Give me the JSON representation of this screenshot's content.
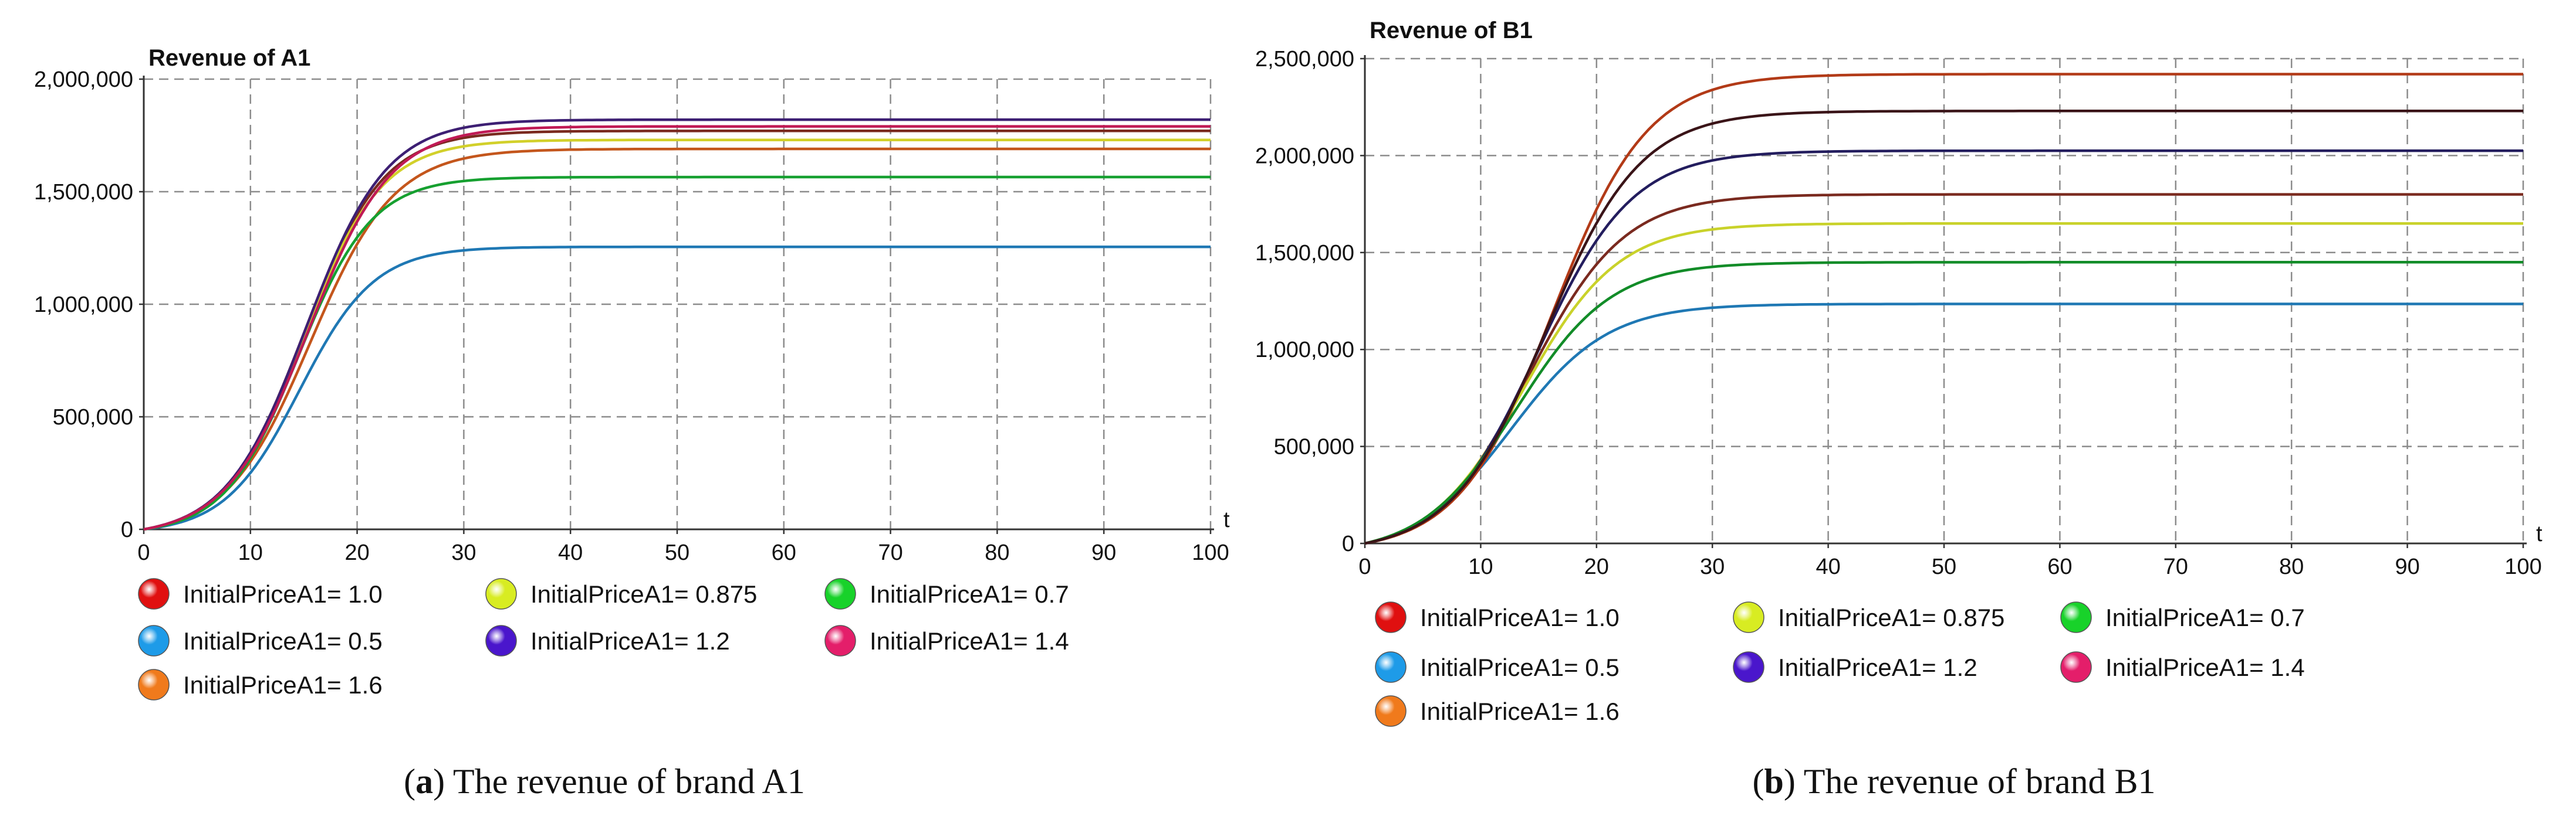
{
  "chart_data": [
    {
      "type": "line",
      "title": "Revenue of A1",
      "xlabel": "t",
      "ylabel": "",
      "xlim": [
        0,
        100
      ],
      "ylim": [
        0,
        2000000
      ],
      "xticks": [
        0,
        10,
        20,
        30,
        40,
        50,
        60,
        70,
        80,
        90,
        100
      ],
      "xtick_labels": [
        "0",
        "10",
        "20",
        "30",
        "40",
        "50",
        "60",
        "70",
        "80",
        "90",
        "100"
      ],
      "yticks": [
        0,
        500000,
        1000000,
        1500000,
        2000000
      ],
      "ytick_labels": [
        "0",
        "500,000",
        "1,000,000",
        "1,500,000",
        "2,000,000"
      ],
      "grid": true,
      "legend_position": "bottom",
      "caption_prefix": "(",
      "caption_letter": "a",
      "caption_text": ") The revenue of brand A1",
      "series": [
        {
          "name": "InitialPriceA1= 1.0",
          "color": "#7a2a1f",
          "legend_color": "#e01010",
          "plateau": 1770000,
          "midpoint": 15.0,
          "rate": 0.27
        },
        {
          "name": "InitialPriceA1= 0.5",
          "color": "#1f78b4",
          "legend_color": "#1e9be8",
          "plateau": 1255000,
          "midpoint": 14.6,
          "rate": 0.285
        },
        {
          "name": "InitialPriceA1= 1.6",
          "color": "#c4561c",
          "legend_color": "#f07a1c",
          "plateau": 1690000,
          "midpoint": 15.6,
          "rate": 0.255
        },
        {
          "name": "InitialPriceA1= 0.875",
          "color": "#d2d02a",
          "legend_color": "#d8ec22",
          "plateau": 1730000,
          "midpoint": 14.9,
          "rate": 0.272
        },
        {
          "name": "InitialPriceA1= 1.2",
          "color": "#3d1f73",
          "legend_color": "#4a16cc",
          "plateau": 1820000,
          "midpoint": 15.2,
          "rate": 0.265
        },
        {
          "name": "InitialPriceA1= 0.7",
          "color": "#16a030",
          "legend_color": "#18d22a",
          "plateau": 1565000,
          "midpoint": 14.5,
          "rate": 0.29
        },
        {
          "name": "InitialPriceA1= 1.4",
          "color": "#c01a55",
          "legend_color": "#e41e6a",
          "plateau": 1790000,
          "midpoint": 15.4,
          "rate": 0.26
        }
      ]
    },
    {
      "type": "line",
      "title": "Revenue of B1",
      "xlabel": "t",
      "ylabel": "",
      "xlim": [
        0,
        100
      ],
      "ylim": [
        0,
        2500000
      ],
      "xticks": [
        0,
        10,
        20,
        30,
        40,
        50,
        60,
        70,
        80,
        90,
        100
      ],
      "xtick_labels": [
        "0",
        "10",
        "20",
        "30",
        "40",
        "50",
        "60",
        "70",
        "80",
        "90",
        "100"
      ],
      "yticks": [
        0,
        500000,
        1000000,
        1500000,
        2000000,
        2500000
      ],
      "ytick_labels": [
        "0",
        "500,000",
        "1,000,000",
        "1,500,000",
        "2,000,000",
        "2,500,000"
      ],
      "grid": true,
      "legend_position": "bottom",
      "caption_prefix": "(",
      "caption_letter": "b",
      "caption_text": ") The revenue of brand B1",
      "series": [
        {
          "name": "InitialPriceA1= 1.0",
          "color": "#7a2a1f",
          "legend_color": "#e01010",
          "plateau": 1800000,
          "midpoint": 14.2,
          "rate": 0.245
        },
        {
          "name": "InitialPriceA1= 0.5",
          "color": "#1f78b4",
          "legend_color": "#1e9be8",
          "plateau": 1235000,
          "midpoint": 12.6,
          "rate": 0.24
        },
        {
          "name": "InitialPriceA1= 1.6",
          "color": "#b23a17",
          "legend_color": "#f07a1c",
          "plateau": 2420000,
          "midpoint": 16.2,
          "rate": 0.245
        },
        {
          "name": "InitialPriceA1= 0.875",
          "color": "#c9d22a",
          "legend_color": "#d8ec22",
          "plateau": 1650000,
          "midpoint": 13.7,
          "rate": 0.245
        },
        {
          "name": "InitialPriceA1= 1.2",
          "color": "#231d5e",
          "legend_color": "#4a16cc",
          "plateau": 2025000,
          "midpoint": 14.9,
          "rate": 0.245
        },
        {
          "name": "InitialPriceA1= 0.7",
          "color": "#128c28",
          "legend_color": "#18d22a",
          "plateau": 1450000,
          "midpoint": 13.1,
          "rate": 0.245
        },
        {
          "name": "InitialPriceA1= 1.4",
          "color": "#3a1418",
          "legend_color": "#e41e6a",
          "plateau": 2230000,
          "midpoint": 15.6,
          "rate": 0.245
        }
      ]
    }
  ]
}
